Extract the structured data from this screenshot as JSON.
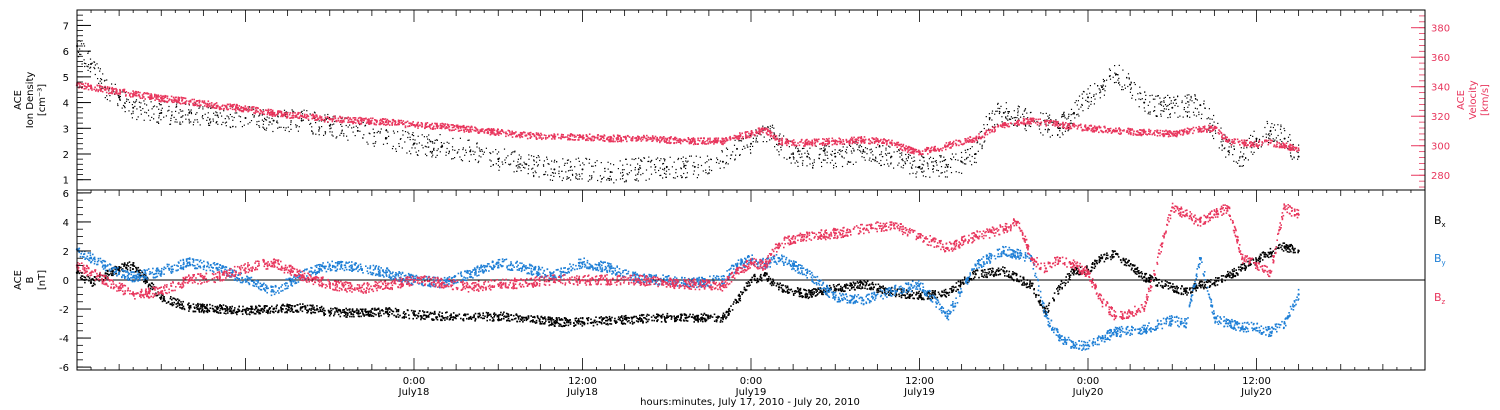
{
  "colors": {
    "density": "#000000",
    "velocity": "#e8365d",
    "bx": "#000000",
    "by": "#1e7fd6",
    "bz": "#e8365d",
    "frame": "#000000"
  },
  "x_axis": {
    "title": "hours:minutes, July 17, 2010 - July 20, 2010",
    "range_hours": [
      0,
      96
    ],
    "ticks": [
      {
        "hours": 24,
        "time": "0:00",
        "day": "July18"
      },
      {
        "hours": 36,
        "time": "12:00",
        "day": "July18"
      },
      {
        "hours": 48,
        "time": "0:00",
        "day": "July19"
      },
      {
        "hours": 60,
        "time": "12:00",
        "day": "July19"
      },
      {
        "hours": 72,
        "time": "0:00",
        "day": "July20"
      },
      {
        "hours": 84,
        "time": "12:00",
        "day": "July20"
      }
    ]
  },
  "chart_data": [
    {
      "type": "scatter",
      "panel": "top",
      "ylabel_left": [
        "ACE",
        "Ion Density",
        "[cm⁻³]"
      ],
      "ylabel_right": [
        "ACE",
        "Velocity",
        "[km/s]"
      ],
      "ylim_left": [
        0.6,
        7.6
      ],
      "ylim_right": [
        270,
        392
      ],
      "yticks_left": [
        1,
        2,
        3,
        4,
        5,
        6,
        7
      ],
      "yticks_right": [
        280,
        300,
        320,
        340,
        360,
        380
      ],
      "series": [
        {
          "axis": "left",
          "x": [
            0,
            1,
            2,
            3,
            4,
            6,
            8,
            10,
            12,
            14,
            16,
            18,
            20,
            22,
            24,
            26,
            28,
            30,
            32,
            34,
            36,
            38,
            40,
            42,
            44,
            46,
            47,
            48,
            49,
            50,
            51,
            52,
            54,
            56,
            58,
            60,
            62,
            63,
            64,
            65,
            66,
            68,
            70,
            71,
            72,
            73,
            74,
            75,
            76,
            78,
            80,
            82,
            83,
            84,
            85,
            86,
            87
          ],
          "y": [
            6.2,
            5.5,
            4.6,
            4.2,
            3.8,
            3.6,
            3.6,
            3.5,
            3.4,
            3.3,
            3.3,
            3.1,
            2.9,
            2.6,
            2.4,
            2.3,
            2.1,
            1.8,
            1.6,
            1.4,
            1.4,
            1.3,
            1.4,
            1.5,
            1.5,
            1.7,
            2.2,
            2.4,
            3.0,
            2.4,
            2.0,
            1.9,
            1.9,
            2.1,
            1.9,
            1.5,
            1.5,
            1.7,
            2.0,
            3.4,
            3.6,
            3.3,
            3.0,
            3.6,
            4.2,
            4.6,
            5.1,
            4.7,
            4.0,
            3.8,
            3.9,
            2.1,
            1.9,
            2.6,
            2.9,
            2.6,
            1.9
          ]
        },
        {
          "axis": "right",
          "x": [
            0,
            1,
            2,
            4,
            6,
            8,
            10,
            12,
            14,
            16,
            18,
            20,
            22,
            24,
            26,
            28,
            30,
            32,
            34,
            36,
            38,
            40,
            42,
            44,
            46,
            47,
            48,
            49,
            50,
            51,
            52,
            54,
            56,
            58,
            59,
            60,
            61,
            62,
            64,
            66,
            67,
            68,
            70,
            72,
            74,
            76,
            78,
            80,
            81,
            82,
            83,
            84,
            85,
            86,
            87
          ],
          "y": [
            341,
            340,
            338,
            335,
            332,
            330,
            327,
            325,
            322,
            320,
            318,
            317,
            316,
            314,
            313,
            311,
            309,
            307,
            306,
            306,
            305,
            305,
            304,
            303,
            303,
            306,
            308,
            311,
            303,
            302,
            302,
            303,
            304,
            302,
            298,
            296,
            297,
            300,
            305,
            314,
            316,
            317,
            314,
            312,
            310,
            309,
            308,
            311,
            312,
            303,
            302,
            301,
            302,
            300,
            297
          ]
        }
      ]
    },
    {
      "type": "scatter",
      "panel": "bottom",
      "ylabel_left": [
        "ACE",
        "B",
        "[nT]"
      ],
      "ylim": [
        -6.2,
        6.2
      ],
      "yticks": [
        -6,
        -4,
        -2,
        0,
        2,
        4,
        6
      ],
      "zero_line": true,
      "legend_position": "right",
      "series": [
        {
          "name": "Bx",
          "x": [
            0,
            1,
            2,
            3,
            4,
            6,
            8,
            10,
            12,
            14,
            16,
            18,
            20,
            22,
            24,
            26,
            28,
            30,
            32,
            34,
            36,
            38,
            40,
            42,
            44,
            46,
            47,
            48,
            49,
            50,
            52,
            54,
            56,
            58,
            60,
            62,
            64,
            66,
            68,
            69,
            70,
            71,
            72,
            73,
            74,
            76,
            78,
            79,
            80,
            81,
            82,
            83,
            84,
            85,
            86,
            87
          ],
          "y": [
            0.5,
            -0.2,
            0.3,
            0.8,
            1.0,
            -1.2,
            -1.9,
            -2.0,
            -2.1,
            -2.0,
            -1.9,
            -2.2,
            -2.3,
            -2.2,
            -2.4,
            -2.5,
            -2.6,
            -2.5,
            -2.6,
            -2.9,
            -2.9,
            -2.8,
            -2.7,
            -2.6,
            -2.6,
            -2.6,
            -1.5,
            0.0,
            0.3,
            -0.5,
            -1.0,
            -0.6,
            -0.3,
            -0.8,
            -1.1,
            -0.9,
            0.4,
            0.6,
            -0.4,
            -2.2,
            -0.5,
            0.6,
            0.7,
            1.5,
            1.8,
            0.2,
            -0.5,
            -0.8,
            -0.4,
            -0.2,
            0.3,
            0.8,
            1.4,
            1.9,
            2.3,
            2.0
          ]
        },
        {
          "name": "By",
          "x": [
            0,
            1,
            2,
            3,
            4,
            6,
            8,
            10,
            12,
            14,
            16,
            18,
            20,
            22,
            24,
            26,
            28,
            30,
            32,
            34,
            36,
            38,
            40,
            42,
            44,
            46,
            47,
            48,
            49,
            50,
            52,
            54,
            56,
            58,
            60,
            62,
            64,
            66,
            68,
            69,
            70,
            71,
            72,
            73,
            74,
            76,
            78,
            79,
            80,
            81,
            82,
            83,
            84,
            85,
            86,
            87
          ],
          "y": [
            2.1,
            1.5,
            1.0,
            0.5,
            0.2,
            0.6,
            1.2,
            0.8,
            0.0,
            -0.8,
            0.3,
            1.0,
            0.9,
            0.5,
            0.0,
            -0.2,
            0.4,
            1.2,
            0.8,
            0.3,
            1.2,
            0.8,
            0.1,
            0.0,
            -0.2,
            0.0,
            1.0,
            1.4,
            1.1,
            1.5,
            0.5,
            -1.2,
            -1.4,
            -0.8,
            -0.3,
            -2.5,
            1.0,
            2.0,
            1.5,
            -2.5,
            -4.0,
            -4.5,
            -4.5,
            -4.0,
            -3.6,
            -3.4,
            -2.8,
            -3.0,
            1.5,
            -2.6,
            -3.0,
            -3.2,
            -3.3,
            -3.6,
            -3.0,
            -1.0
          ]
        },
        {
          "name": "Bz",
          "x": [
            0,
            1,
            2,
            3,
            4,
            6,
            8,
            10,
            12,
            14,
            16,
            18,
            20,
            22,
            24,
            26,
            28,
            30,
            32,
            34,
            36,
            38,
            40,
            42,
            44,
            46,
            47,
            48,
            49,
            50,
            52,
            54,
            56,
            58,
            60,
            62,
            64,
            66,
            67,
            68,
            69,
            70,
            71,
            72,
            73,
            74,
            76,
            78,
            79,
            80,
            81,
            82,
            83,
            84,
            85,
            86,
            87
          ],
          "y": [
            1.0,
            0.5,
            0.0,
            -0.5,
            -1.0,
            -0.8,
            0.0,
            0.2,
            0.8,
            1.2,
            0.3,
            -0.3,
            -0.6,
            -0.4,
            0.0,
            -0.2,
            -0.5,
            -0.3,
            -0.2,
            0.0,
            0.0,
            0.0,
            0.0,
            -0.2,
            -0.3,
            -0.4,
            0.5,
            1.2,
            1.0,
            2.5,
            3.0,
            3.2,
            3.5,
            3.8,
            3.0,
            2.2,
            3.0,
            3.5,
            4.0,
            1.5,
            0.8,
            1.5,
            1.0,
            0.5,
            -1.5,
            -2.5,
            -2.0,
            5.0,
            4.5,
            4.0,
            4.5,
            5.0,
            1.5,
            1.0,
            0.5,
            5.0,
            4.5
          ]
        }
      ]
    }
  ]
}
